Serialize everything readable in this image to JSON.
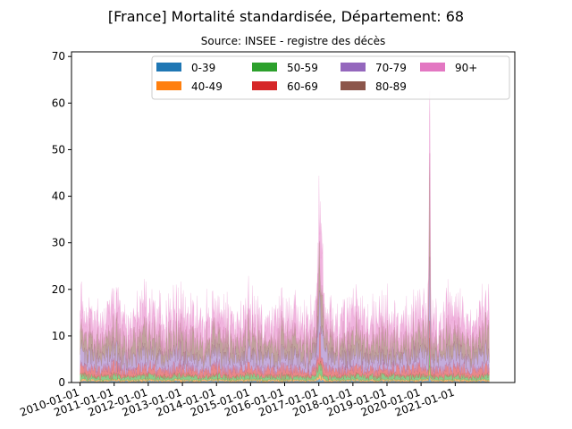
{
  "chart_data": {
    "type": "area",
    "title": "[France] Mortalité standardisée, Département: 68",
    "subtitle": "Source: INSEE - registre des décès",
    "xlabel": "",
    "ylabel": "",
    "x_range": [
      "2009-10-01",
      "2022-10-01"
    ],
    "x_ticks": [
      "2010-01-01",
      "2011-01-01",
      "2012-01-01",
      "2013-01-01",
      "2014-01-01",
      "2015-01-01",
      "2016-01-01",
      "2017-01-01",
      "2018-01-01",
      "2019-01-01",
      "2020-01-01",
      "2021-01-01"
    ],
    "ylim": [
      0,
      71
    ],
    "y_ticks": [
      0,
      10,
      20,
      30,
      40,
      50,
      60,
      70
    ],
    "grid": false,
    "legend_position": "top-right",
    "stacked": true,
    "series": [
      {
        "name": "0-39",
        "color": "#1f77b4",
        "typical": 0.25
      },
      {
        "name": "40-49",
        "color": "#ff7f0e",
        "typical": 0.3
      },
      {
        "name": "50-59",
        "color": "#2ca02c",
        "typical": 0.8
      },
      {
        "name": "60-69",
        "color": "#d62728",
        "typical": 1.6
      },
      {
        "name": "70-79",
        "color": "#9467bd",
        "typical": 2.7
      },
      {
        "name": "80-89",
        "color": "#8c564b",
        "typical": 3.8
      },
      {
        "name": "90+",
        "color": "#e377c2",
        "typical": 4.5
      }
    ],
    "peaks": [
      {
        "date": "2017-01-15",
        "total": 36
      },
      {
        "date": "2020-04-01",
        "total": 62
      }
    ]
  }
}
